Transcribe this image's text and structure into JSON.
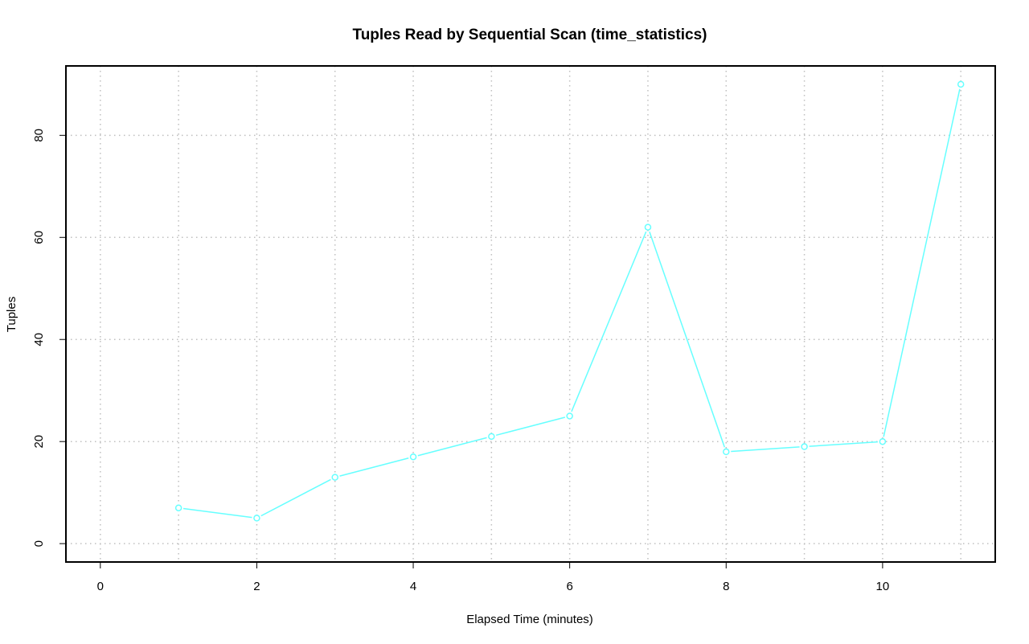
{
  "chart_data": {
    "type": "line",
    "title": "Tuples Read by Sequential Scan (time_statistics)",
    "xlabel": "Elapsed Time (minutes)",
    "ylabel": "Tuples",
    "x": [
      1,
      2,
      3,
      4,
      5,
      6,
      7,
      8,
      9,
      10,
      11
    ],
    "series": [
      {
        "values": [
          7,
          5,
          13,
          17,
          21,
          25,
          62,
          18,
          19,
          20,
          90
        ],
        "color": "#66ffff"
      }
    ],
    "xlim": [
      -0.44,
      11.44
    ],
    "ylim": [
      -3.6,
      93.6
    ],
    "xticks": [
      0,
      2,
      4,
      6,
      8,
      10
    ],
    "yticks": [
      0,
      20,
      40,
      60,
      80
    ],
    "xtick_labels": [
      "0",
      "2",
      "4",
      "6",
      "8",
      "10"
    ],
    "ytick_labels": [
      "0",
      "20",
      "40",
      "60",
      "80"
    ],
    "grid": true,
    "grid_style": "dotted",
    "marker": "open-circle",
    "legend": "none"
  }
}
